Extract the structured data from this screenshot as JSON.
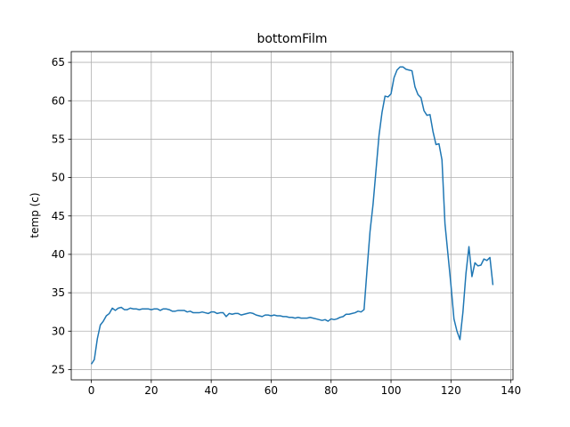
{
  "chart_data": {
    "type": "line",
    "title": "bottomFilm",
    "y_label": "temp (c)",
    "x": [
      0,
      1,
      2,
      3,
      4,
      5,
      6,
      7,
      8,
      9,
      10,
      11,
      12,
      13,
      14,
      15,
      16,
      17,
      18,
      19,
      20,
      21,
      22,
      23,
      24,
      25,
      26,
      27,
      28,
      29,
      30,
      31,
      32,
      33,
      34,
      35,
      36,
      37,
      38,
      39,
      40,
      41,
      42,
      43,
      44,
      45,
      46,
      47,
      48,
      49,
      50,
      51,
      52,
      53,
      54,
      55,
      56,
      57,
      58,
      59,
      60,
      61,
      62,
      63,
      64,
      65,
      66,
      67,
      68,
      69,
      70,
      71,
      72,
      73,
      74,
      75,
      76,
      77,
      78,
      79,
      80,
      81,
      82,
      83,
      84,
      85,
      86,
      87,
      88,
      89,
      90,
      91,
      92,
      93,
      94,
      95,
      96,
      97,
      98,
      99,
      100,
      101,
      102,
      103,
      104,
      105,
      106,
      107,
      108,
      109,
      110,
      111,
      112,
      113,
      114,
      115,
      116,
      117,
      118,
      119,
      120,
      121,
      122,
      123,
      124,
      125,
      126,
      127,
      128,
      129,
      130,
      131,
      132,
      133,
      134
    ],
    "series": [
      {
        "name": "bottomFilm",
        "color": "#1f77b4",
        "values": [
          25.7,
          26.3,
          29,
          30.8,
          31.3,
          32,
          32.3,
          33,
          32.7,
          33,
          33.1,
          32.8,
          32.8,
          33,
          32.9,
          32.9,
          32.8,
          32.9,
          32.9,
          32.9,
          32.8,
          32.9,
          32.9,
          32.7,
          32.9,
          32.9,
          32.8,
          32.6,
          32.6,
          32.7,
          32.7,
          32.7,
          32.5,
          32.6,
          32.4,
          32.4,
          32.4,
          32.5,
          32.4,
          32.3,
          32.5,
          32.5,
          32.3,
          32.4,
          32.4,
          31.9,
          32.3,
          32.2,
          32.3,
          32.3,
          32.1,
          32.2,
          32.3,
          32.4,
          32.3,
          32.1,
          32,
          31.9,
          32.1,
          32.1,
          32,
          32.1,
          32,
          32,
          31.9,
          31.9,
          31.8,
          31.8,
          31.7,
          31.8,
          31.7,
          31.7,
          31.7,
          31.8,
          31.7,
          31.6,
          31.5,
          31.4,
          31.5,
          31.3,
          31.6,
          31.5,
          31.6,
          31.8,
          31.9,
          32.2,
          32.2,
          32.3,
          32.4,
          32.6,
          32.5,
          32.8,
          38,
          43,
          46.5,
          51,
          55.5,
          58.5,
          60.6,
          60.5,
          60.9,
          63,
          64,
          64.4,
          64.4,
          64.1,
          64,
          63.9,
          61.8,
          60.8,
          60.4,
          58.7,
          58.1,
          58.2,
          56,
          54.3,
          54.4,
          52.3,
          44,
          40,
          36,
          31.6,
          30,
          28.9,
          32.5,
          37.5,
          41,
          37.1,
          38.9,
          38.5,
          38.6,
          39.4,
          39.2,
          39.6,
          36
        ]
      }
    ],
    "xlim": [
      -6.7,
      140.7
    ],
    "ylim": [
      23.66,
      66.4
    ],
    "xticks": [
      0,
      20,
      40,
      60,
      80,
      100,
      120,
      140
    ],
    "yticks": [
      25,
      30,
      35,
      40,
      45,
      50,
      55,
      60,
      65
    ],
    "grid": true
  }
}
